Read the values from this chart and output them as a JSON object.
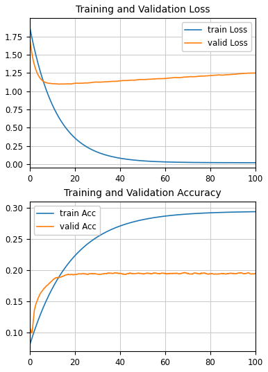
{
  "title_loss": "Training and Validation Loss",
  "title_acc": "Training and Validation Accuracy",
  "train_loss_color": "#1f77b4",
  "valid_loss_color": "#ff7f0e",
  "train_acc_color": "#1f77b4",
  "valid_acc_color": "#ff7f0e",
  "legend_train_loss": "train Loss",
  "legend_valid_loss": "valid Loss",
  "legend_train_acc": "train Acc",
  "legend_valid_acc": "valid Acc",
  "x_max": 100,
  "loss_ylim": [
    -0.05,
    2.0
  ],
  "acc_ylim": [
    0.07,
    0.31
  ],
  "loss_yticks": [
    0.0,
    0.25,
    0.5,
    0.75,
    1.0,
    1.25,
    1.5,
    1.75
  ],
  "acc_yticks": [
    0.1,
    0.15,
    0.2,
    0.25,
    0.3
  ],
  "background_color": "#ffffff",
  "grid_color": "#cccccc"
}
